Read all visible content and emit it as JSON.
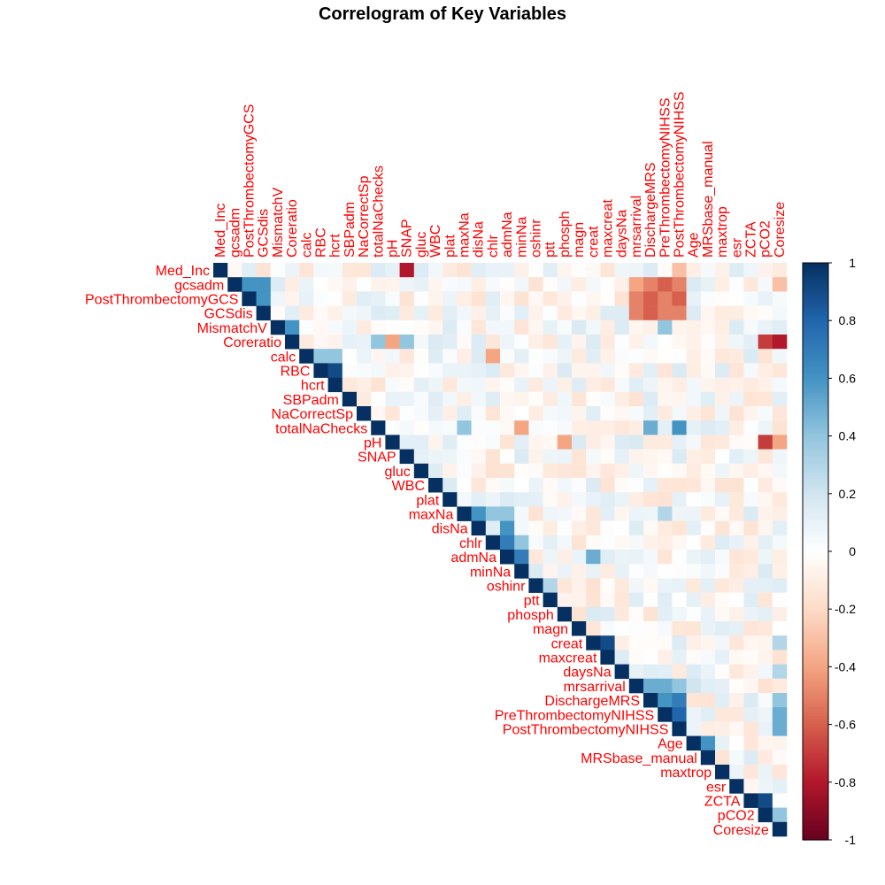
{
  "chart_data": {
    "type": "heatmap",
    "title": "Correlogram of Key Variables",
    "variables": [
      "Med_Inc",
      "gcsadm",
      "PostThrombectomyGCS",
      "GCSdis",
      "MismatchV",
      "Coreratio",
      "calc",
      "RBC",
      "hcrt",
      "SBPadm",
      "NaCorrectSp",
      "totalNaChecks",
      "pH",
      "SNAP",
      "gluc",
      "WBC",
      "plat",
      "maxNa",
      "disNa",
      "chlr",
      "admNa",
      "minNa",
      "oshinr",
      "ptt",
      "phosph",
      "magn",
      "creat",
      "maxcreat",
      "daysNa",
      "mrsarrival",
      "DischargeMRS",
      "PreThrombectomyNIHSS",
      "PostThrombectomyNIHSS",
      "Age",
      "MRSbase_manual",
      "maxtrop",
      "esr",
      "ZCTA",
      "pCO2",
      "Coresize"
    ],
    "layout": "upper-triangle",
    "label_color": "#ff0000",
    "colorbar": {
      "ticks": [
        "1",
        "0.8",
        "0.6",
        "0.4",
        "0.2",
        "0",
        "-0.2",
        "-0.4",
        "-0.6",
        "-0.8",
        "-1"
      ],
      "range": [
        -1,
        1
      ],
      "colors": [
        "#67001f",
        "#b2182b",
        "#d6604d",
        "#f4a582",
        "#fddbc7",
        "#ffffff",
        "#d1e5f0",
        "#92c5de",
        "#4393c3",
        "#2166ac",
        "#053061"
      ]
    },
    "correlations": [
      {
        "row": "Med_Inc",
        "col": "SNAP",
        "r": -0.8
      },
      {
        "row": "gcsadm",
        "col": "PostThrombectomyGCS",
        "r": 0.6
      },
      {
        "row": "gcsadm",
        "col": "GCSdis",
        "r": 0.6
      },
      {
        "row": "PostThrombectomyGCS",
        "col": "GCSdis",
        "r": 0.6
      },
      {
        "row": "MismatchV",
        "col": "Coreratio",
        "r": 0.6
      },
      {
        "row": "calc",
        "col": "RBC",
        "r": 0.4
      },
      {
        "row": "calc",
        "col": "hcrt",
        "r": 0.4
      },
      {
        "row": "RBC",
        "col": "hcrt",
        "r": 0.9
      },
      {
        "row": "maxNa",
        "col": "disNa",
        "r": 0.6
      },
      {
        "row": "maxNa",
        "col": "chlr",
        "r": 0.4
      },
      {
        "row": "maxNa",
        "col": "admNa",
        "r": 0.4
      },
      {
        "row": "disNa",
        "col": "admNa",
        "r": 0.6
      },
      {
        "row": "chlr",
        "col": "admNa",
        "r": 0.7
      },
      {
        "row": "chlr",
        "col": "minNa",
        "r": 0.4
      },
      {
        "row": "admNa",
        "col": "minNa",
        "r": 0.7
      },
      {
        "row": "creat",
        "col": "maxcreat",
        "r": 0.9
      },
      {
        "row": "mrsarrival",
        "col": "DischargeMRS",
        "r": 0.5
      },
      {
        "row": "mrsarrival",
        "col": "PreThrombectomyNIHSS",
        "r": 0.5
      },
      {
        "row": "mrsarrival",
        "col": "PostThrombectomyNIHSS",
        "r": 0.4
      },
      {
        "row": "DischargeMRS",
        "col": "PreThrombectomyNIHSS",
        "r": 0.6
      },
      {
        "row": "DischargeMRS",
        "col": "PostThrombectomyNIHSS",
        "r": 0.7
      },
      {
        "row": "PreThrombectomyNIHSS",
        "col": "PostThrombectomyNIHSS",
        "r": 0.8
      },
      {
        "row": "Age",
        "col": "MRSbase_manual",
        "r": 0.6
      },
      {
        "row": "ZCTA",
        "col": "pCO2",
        "r": 0.9
      },
      {
        "row": "pCO2",
        "col": "Coresize",
        "r": 0.4
      },
      {
        "row": "gcsadm",
        "col": "PreThrombectomyNIHSS",
        "r": -0.6
      },
      {
        "row": "gcsadm",
        "col": "PostThrombectomyNIHSS",
        "r": -0.5
      },
      {
        "row": "gcsadm",
        "col": "mrsarrival",
        "r": -0.4
      },
      {
        "row": "gcsadm",
        "col": "DischargeMRS",
        "r": -0.5
      },
      {
        "row": "PostThrombectomyGCS",
        "col": "mrsarrival",
        "r": -0.5
      },
      {
        "row": "PostThrombectomyGCS",
        "col": "DischargeMRS",
        "r": -0.6
      },
      {
        "row": "PostThrombectomyGCS",
        "col": "PreThrombectomyNIHSS",
        "r": -0.5
      },
      {
        "row": "PostThrombectomyGCS",
        "col": "PostThrombectomyNIHSS",
        "r": -0.6
      },
      {
        "row": "GCSdis",
        "col": "mrsarrival",
        "r": -0.5
      },
      {
        "row": "GCSdis",
        "col": "DischargeMRS",
        "r": -0.6
      },
      {
        "row": "GCSdis",
        "col": "PreThrombectomyNIHSS",
        "r": -0.5
      },
      {
        "row": "GCSdis",
        "col": "PostThrombectomyNIHSS",
        "r": -0.5
      },
      {
        "row": "MismatchV",
        "col": "PreThrombectomyNIHSS",
        "r": 0.4
      },
      {
        "row": "Coreratio",
        "col": "pCO2",
        "r": -0.7
      },
      {
        "row": "Coreratio",
        "col": "Coresize",
        "r": -0.8
      },
      {
        "row": "Coreratio",
        "col": "totalNaChecks",
        "r": 0.4
      },
      {
        "row": "Coreratio",
        "col": "pH",
        "r": -0.4
      },
      {
        "row": "Coreratio",
        "col": "SNAP",
        "r": 0.4
      },
      {
        "row": "totalNaChecks",
        "col": "PostThrombectomyNIHSS",
        "r": 0.6
      },
      {
        "row": "totalNaChecks",
        "col": "DischargeMRS",
        "r": 0.5
      },
      {
        "row": "totalNaChecks",
        "col": "maxNa",
        "r": 0.4
      },
      {
        "row": "totalNaChecks",
        "col": "minNa",
        "r": -0.4
      },
      {
        "row": "pH",
        "col": "pCO2",
        "r": -0.7
      },
      {
        "row": "pH",
        "col": "Coresize",
        "r": -0.4
      },
      {
        "row": "pH",
        "col": "phosph",
        "r": -0.4
      },
      {
        "row": "admNa",
        "col": "creat",
        "r": 0.5
      },
      {
        "row": "creat",
        "col": "Coresize",
        "r": 0.3
      },
      {
        "row": "daysNa",
        "col": "Coresize",
        "r": 0.3
      },
      {
        "row": "DischargeMRS",
        "col": "Coresize",
        "r": 0.4
      },
      {
        "row": "PreThrombectomyNIHSS",
        "col": "Coresize",
        "r": 0.5
      },
      {
        "row": "PostThrombectomyNIHSS",
        "col": "Coresize",
        "r": 0.5
      },
      {
        "row": "calc",
        "col": "chlr",
        "r": -0.4
      },
      {
        "row": "maxNa",
        "col": "PreThrombectomyNIHSS",
        "r": 0.3
      },
      {
        "row": "mrsarrival",
        "col": "Age",
        "r": 0.2
      },
      {
        "row": "Med_Inc",
        "col": "PostThrombectomyNIHSS",
        "r": -0.3
      },
      {
        "row": "gcsadm",
        "col": "Coresize",
        "r": -0.3
      },
      {
        "row": "oshinr",
        "col": "ptt",
        "r": 0.3
      }
    ]
  }
}
